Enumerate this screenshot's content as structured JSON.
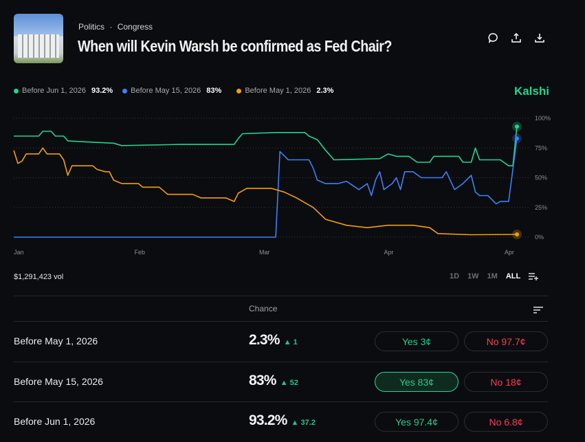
{
  "header": {
    "category": "Politics",
    "subcategory": "Congress",
    "separator": "·",
    "title": "When will Kevin Warsh be confirmed as Fed Chair?"
  },
  "brand": "Kalshi",
  "legend": [
    {
      "label": "Before Jun 1, 2026",
      "value": "93.2%",
      "color": "#1fd68f"
    },
    {
      "label": "Before May 15, 2026",
      "value": "83%",
      "color": "#3b82f6"
    },
    {
      "label": "Before May 1, 2026",
      "value": "2.3%",
      "color": "#f59e0b"
    }
  ],
  "volume": "$1,291,423 vol",
  "ranges": [
    "1D",
    "1W",
    "1M",
    "ALL"
  ],
  "table_header": "Chance",
  "rows": [
    {
      "label": "Before May 1, 2026",
      "chance": "2.3%",
      "change": "▲ 1",
      "yes": "Yes 3¢",
      "no": "No 97.7¢"
    },
    {
      "label": "Before May 15, 2026",
      "chance": "83%",
      "change": "▲ 52",
      "yes": "Yes 83¢",
      "no": "No 18¢"
    },
    {
      "label": "Before Jun 1, 2026",
      "chance": "93.2%",
      "change": "▲ 37.2",
      "yes": "Yes 97.4¢",
      "no": "No 6.8¢"
    }
  ],
  "chart_data": {
    "type": "line",
    "x_unit": "days since Jan 1",
    "xlim": [
      0,
      121
    ],
    "ylim": [
      0,
      100
    ],
    "x_ticks": [
      {
        "label": "Jan",
        "x": 0
      },
      {
        "label": "Feb",
        "x": 30
      },
      {
        "label": "Mar",
        "x": 60
      },
      {
        "label": "Apr",
        "x": 90
      },
      {
        "label": "Apr",
        "x": 119
      }
    ],
    "y_ticks": [
      {
        "label": "100%",
        "y": 100
      },
      {
        "label": "75%",
        "y": 75
      },
      {
        "label": "50%",
        "y": 50
      },
      {
        "label": "25%",
        "y": 25
      },
      {
        "label": "0%",
        "y": 0
      }
    ],
    "series": [
      {
        "name": "Before Jun 1, 2026",
        "color": "#1fd68f",
        "points": [
          [
            0,
            85
          ],
          [
            6,
            85
          ],
          [
            7,
            89
          ],
          [
            9,
            89
          ],
          [
            10,
            85
          ],
          [
            12,
            85
          ],
          [
            13,
            81
          ],
          [
            18,
            80
          ],
          [
            24,
            79
          ],
          [
            26,
            77
          ],
          [
            40,
            78
          ],
          [
            53,
            78
          ],
          [
            54,
            83
          ],
          [
            55,
            87
          ],
          [
            63,
            88
          ],
          [
            70,
            88
          ],
          [
            71,
            85
          ],
          [
            73,
            82
          ],
          [
            75,
            73
          ],
          [
            77,
            65
          ],
          [
            88,
            66
          ],
          [
            90,
            70
          ],
          [
            92,
            68
          ],
          [
            95,
            68
          ],
          [
            97,
            63
          ],
          [
            100,
            63
          ],
          [
            101,
            68
          ],
          [
            107,
            68
          ],
          [
            108,
            63
          ],
          [
            110,
            63
          ],
          [
            111,
            75
          ],
          [
            112,
            65
          ],
          [
            117,
            65
          ],
          [
            119,
            60
          ],
          [
            120,
            60
          ],
          [
            121,
            93
          ]
        ]
      },
      {
        "name": "Before May 15, 2026",
        "color": "#3b82f6",
        "points": [
          [
            0,
            0
          ],
          [
            63,
            0
          ],
          [
            64,
            72
          ],
          [
            66,
            65
          ],
          [
            71,
            65
          ],
          [
            72,
            58
          ],
          [
            73,
            48
          ],
          [
            75,
            45
          ],
          [
            78,
            45
          ],
          [
            80,
            47
          ],
          [
            83,
            40
          ],
          [
            85,
            45
          ],
          [
            86,
            35
          ],
          [
            87,
            48
          ],
          [
            88,
            55
          ],
          [
            89,
            40
          ],
          [
            91,
            45
          ],
          [
            92,
            50
          ],
          [
            93,
            40
          ],
          [
            94,
            55
          ],
          [
            96,
            55
          ],
          [
            98,
            50
          ],
          [
            103,
            50
          ],
          [
            104,
            55
          ],
          [
            106,
            40
          ],
          [
            108,
            45
          ],
          [
            110,
            52
          ],
          [
            111,
            38
          ],
          [
            112,
            35
          ],
          [
            114,
            35
          ],
          [
            116,
            28
          ],
          [
            117,
            30
          ],
          [
            119,
            30
          ],
          [
            121,
            83
          ]
        ]
      },
      {
        "name": "Before May 1, 2026",
        "color": "#f59e0b",
        "points": [
          [
            0,
            73
          ],
          [
            1,
            62
          ],
          [
            2,
            64
          ],
          [
            3,
            70
          ],
          [
            6,
            70
          ],
          [
            7,
            75
          ],
          [
            8,
            70
          ],
          [
            11,
            70
          ],
          [
            12,
            65
          ],
          [
            13,
            52
          ],
          [
            14,
            60
          ],
          [
            19,
            60
          ],
          [
            20,
            57
          ],
          [
            22,
            55
          ],
          [
            23,
            55
          ],
          [
            24,
            48
          ],
          [
            26,
            45
          ],
          [
            30,
            45
          ],
          [
            31,
            42
          ],
          [
            35,
            42
          ],
          [
            37,
            36
          ],
          [
            43,
            36
          ],
          [
            45,
            33
          ],
          [
            51,
            33
          ],
          [
            53,
            30
          ],
          [
            54,
            37
          ],
          [
            56,
            41
          ],
          [
            62,
            41
          ],
          [
            65,
            38
          ],
          [
            68,
            33
          ],
          [
            72,
            25
          ],
          [
            75,
            15
          ],
          [
            80,
            10
          ],
          [
            85,
            8
          ],
          [
            90,
            10
          ],
          [
            96,
            10
          ],
          [
            100,
            8
          ],
          [
            102,
            3
          ],
          [
            110,
            2
          ],
          [
            121,
            2.3
          ]
        ]
      }
    ]
  }
}
